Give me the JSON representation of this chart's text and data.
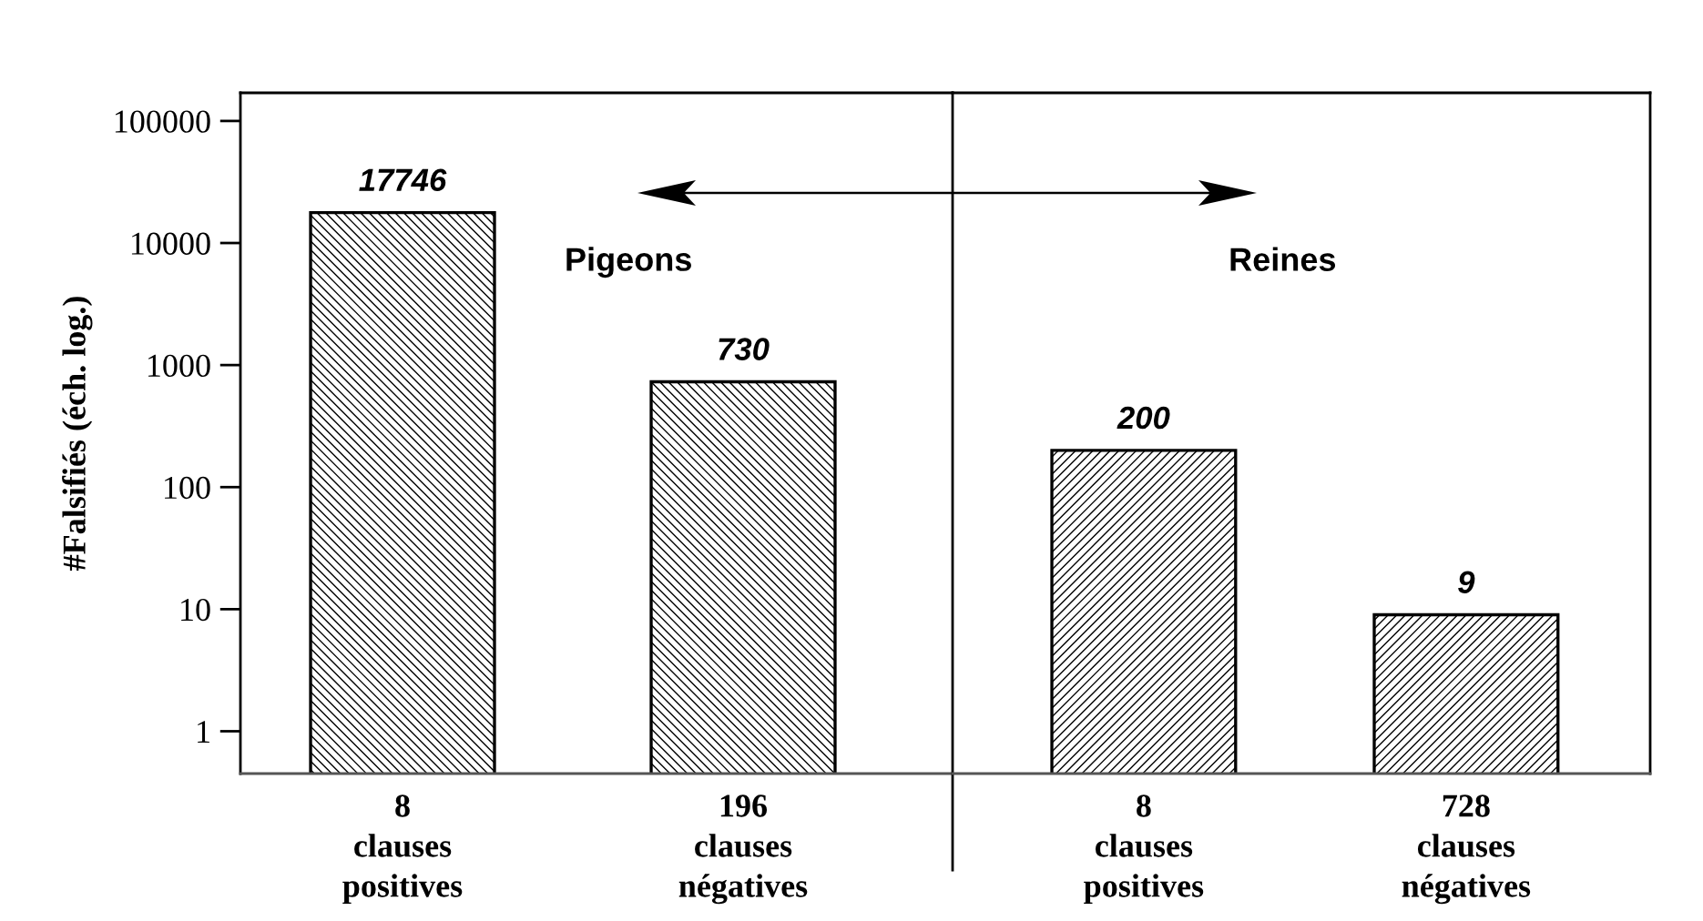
{
  "chart_data": [
    {
      "type": "bar",
      "ylabel": "#Falsifiés (éch. log.)",
      "categories": [
        "8\nclauses\npositives",
        "196\nclauses\nnégatives"
      ],
      "values": [
        17746,
        730
      ],
      "color": "#000000",
      "data_labels": true,
      "log": true,
      "ylim": [
        0.45,
        170000
      ],
      "yticks": [
        1,
        10,
        100,
        1000,
        10000,
        100000
      ],
      "annotations": [
        "Pigeons"
      ]
    },
    {
      "type": "bar",
      "categories": [
        "8\nclauses\npositives",
        "728\nclauses\nnégatives"
      ],
      "values": [
        200,
        9
      ],
      "color": "#000000",
      "data_labels": true,
      "log": true,
      "ylim": [
        0.45,
        170000
      ],
      "tick_labels": "x",
      "annotations": [
        "Reines"
      ]
    }
  ]
}
